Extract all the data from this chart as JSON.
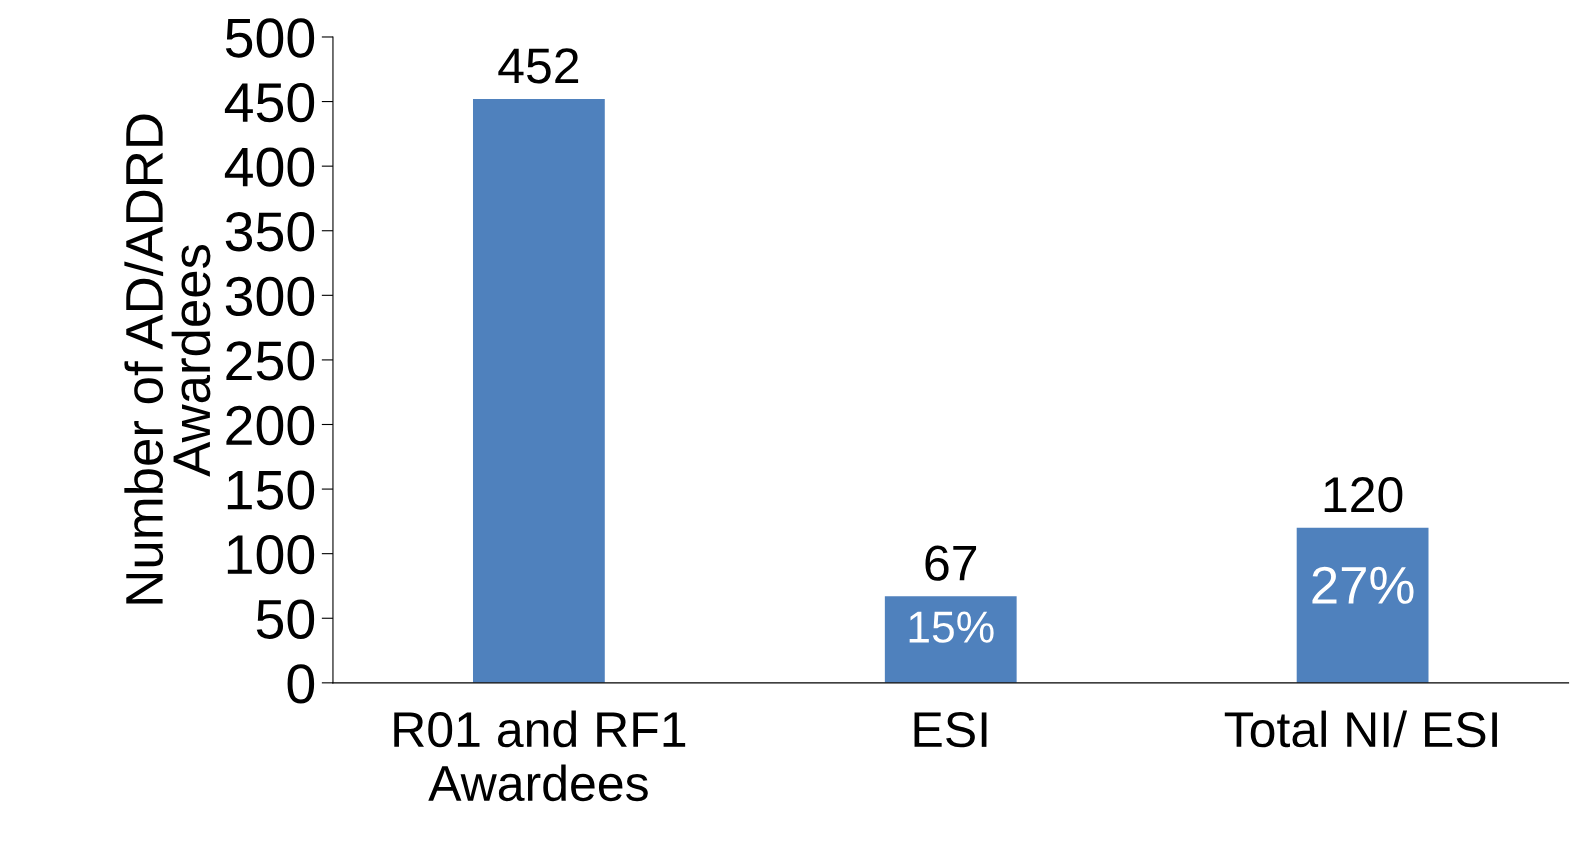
{
  "chart_data": {
    "type": "bar",
    "ylabel": "Number of AD/ADRD\nAwardees",
    "categories": [
      "R01 and RF1\nAwardees",
      "ESI",
      "Total NI/ ESI"
    ],
    "values": [
      452,
      67,
      120
    ],
    "color": "#4f81bd",
    "data_labels": true,
    "ylim": [
      0,
      500
    ],
    "yticks": [
      0,
      50,
      100,
      150,
      200,
      250,
      300,
      350,
      400,
      450,
      500
    ],
    "grid": false,
    "legend": false,
    "annotations": [
      "15%",
      "27%"
    ]
  }
}
